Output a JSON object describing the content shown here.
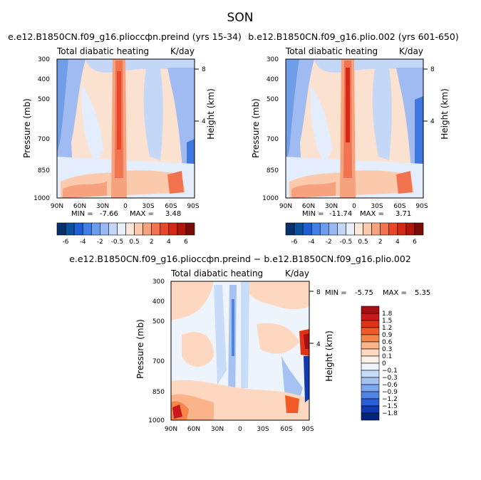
{
  "figure": {
    "title": "SON"
  },
  "chart_data": [
    {
      "type": "heatmap",
      "title": "e.e12.B1850CN.f09_g16.plioccфn.preind (yrs 15-34)",
      "subtitle_left": "Total diabatic heating",
      "subtitle_right": "K/day",
      "xlabel": "",
      "ylabel": "Pressure (mb)",
      "y2label": "Height (km)",
      "x_ticks": [
        "90N",
        "60N",
        "30N",
        "0",
        "30S",
        "60S",
        "90S"
      ],
      "y_ticks": [
        "300",
        "400",
        "500",
        "700",
        "850",
        "1000"
      ],
      "y2_ticks": [
        "8",
        "4"
      ],
      "stats": {
        "min_label": "MIN =",
        "min": "-7.66",
        "max_label": "MAX =",
        "max": "3.48"
      }
    },
    {
      "type": "heatmap",
      "title": "b.e12.B1850CN.f09_g16.plio.002 (yrs 601-650)",
      "subtitle_left": "Total diabatic heating",
      "subtitle_right": "K/day",
      "xlabel": "",
      "ylabel": "Pressure (mb)",
      "y2label": "Height (km)",
      "x_ticks": [
        "90N",
        "60N",
        "30N",
        "0",
        "30S",
        "60S",
        "90S"
      ],
      "y_ticks": [
        "300",
        "400",
        "500",
        "700",
        "850",
        "1000"
      ],
      "y2_ticks": [
        "8",
        "4"
      ],
      "stats": {
        "min_label": "MIN =",
        "min": "-11.74",
        "max_label": "MAX =",
        "max": "3.71"
      }
    },
    {
      "type": "heatmap",
      "title": "e.e12.B1850CN.f09_g16.plioccфn.preind − b.e12.B1850CN.f09_g16.plio.002",
      "subtitle_left": "Total diabatic heating",
      "subtitle_right": "K/day",
      "xlabel": "",
      "ylabel": "Pressure (mb)",
      "y2label": "Height (km)",
      "x_ticks": [
        "90N",
        "60N",
        "30N",
        "0",
        "30S",
        "60S",
        "90S"
      ],
      "y_ticks": [
        "300",
        "400",
        "500",
        "700",
        "850",
        "1000"
      ],
      "y2_ticks": [
        "8",
        "4"
      ],
      "stats": {
        "min_label": "MIN =",
        "min": "-5.75",
        "max_label": "MAX =",
        "max": "5.35"
      }
    }
  ],
  "colorbars": {
    "top": {
      "labels": [
        "-6",
        "-4",
        "-2",
        "-0.5",
        "0.5",
        "2",
        "4",
        "6"
      ],
      "colors": [
        "#08306b",
        "#08519c",
        "#1f5fd6",
        "#3f7fe8",
        "#6c9cf0",
        "#97b8f5",
        "#c4d6f8",
        "#e6effa",
        "#fde8da",
        "#fbc9ab",
        "#f7a27e",
        "#f27350",
        "#e8472b",
        "#d32916",
        "#b01509",
        "#7a0b04"
      ]
    },
    "diff": {
      "labels": [
        "1.8",
        "1.5",
        "1.2",
        "0.9",
        "0.6",
        "0.3",
        "0.1",
        "0",
        "−0.1",
        "−0.3",
        "−0.6",
        "−0.9",
        "−1.2",
        "−1.5",
        "−1.8"
      ],
      "colors": [
        "#a50f15",
        "#cb181d",
        "#e23216",
        "#f15a24",
        "#f7864a",
        "#fbb48a",
        "#fdd7bf",
        "#fdf0e6",
        "#eef4fb",
        "#c8dbf7",
        "#a5c2f2",
        "#7ea6ee",
        "#4f84e4",
        "#2a5fd8",
        "#1038b0",
        "#06217a"
      ]
    }
  }
}
